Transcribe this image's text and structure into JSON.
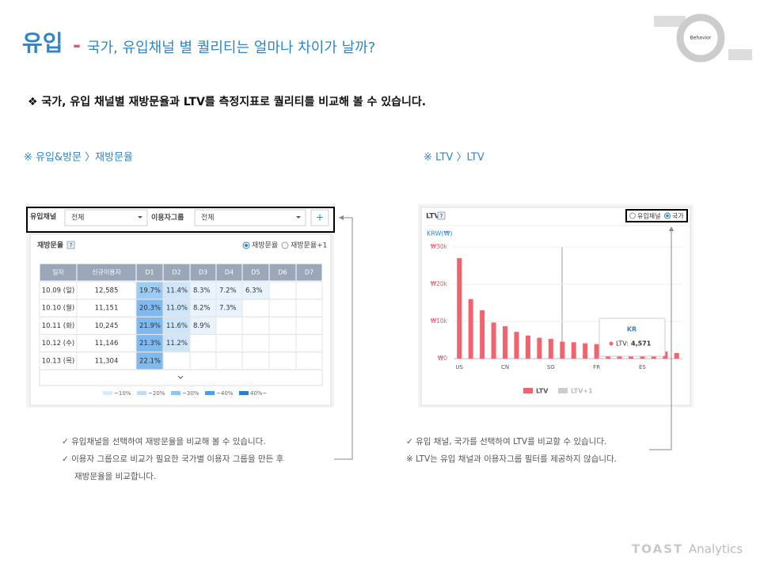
{
  "header": {
    "title": "유입",
    "dash": "-",
    "subtitle": "국가, 유입채널 별 퀄리티는 얼마나 차이가 날까?"
  },
  "diagram": {
    "center": "Behavior"
  },
  "intro": "❖ 국가, 유입 채널별 재방문율과 LTV를 측정지표로 퀄리티를 비교해 볼 수 있습니다.",
  "sections": [
    "※ 유입&방문 〉재방문율",
    "※ LTV 〉LTV"
  ],
  "retention_panel": {
    "filters": [
      {
        "label": "유입채널",
        "value": "전체"
      },
      {
        "label": "이용자그룹",
        "value": "전체"
      }
    ],
    "add": "+",
    "title": "재방문율",
    "help": "?",
    "options": [
      "재방문율",
      "재방문율+1"
    ],
    "table": {
      "columns": [
        "일자",
        "신규이용자",
        "D1",
        "D2",
        "D3",
        "D4",
        "D5",
        "D6",
        "D7"
      ],
      "rows": [
        [
          "10.09 (일)",
          "12,585",
          "19.7%",
          "11.4%",
          "8.3%",
          "7.2%",
          "6.3%"
        ],
        [
          "10.10 (월)",
          "11,151",
          "20.3%",
          "11.0%",
          "8.2%",
          "7.3%"
        ],
        [
          "10.11 (화)",
          "10,245",
          "21.9%",
          "11.6%",
          "8.9%"
        ],
        [
          "10.12 (수)",
          "11,146",
          "21.3%",
          "11.2%"
        ],
        [
          "10.13 (목)",
          "11,304",
          "22.1%"
        ]
      ]
    },
    "legend": [
      "~10%",
      "~20%",
      "~30%",
      "~40%",
      "40%~"
    ]
  },
  "ltv_panel": {
    "title": "LTV",
    "help": "?",
    "options": [
      "유입채널",
      "국가"
    ],
    "chart": {
      "type": "bar",
      "unit": "KRW(₩)",
      "categories": [
        "US",
        null,
        null,
        null,
        "CN",
        null,
        null,
        null,
        "SG",
        null,
        null,
        null,
        "FR",
        null,
        null,
        null,
        "ES",
        null,
        null,
        null
      ],
      "values": [
        27000,
        16000,
        13000,
        9700,
        8700,
        7200,
        6200,
        5600,
        5300,
        4571,
        4400,
        4100,
        3900,
        3500,
        1800,
        1500,
        1300,
        1200,
        1900,
        1500
      ],
      "color": "#f2636f",
      "ylim": [
        0,
        30000
      ],
      "yticks": [
        {
          "value": 0,
          "label": "₩0"
        },
        {
          "value": 10000,
          "label": "₩10k"
        },
        {
          "value": 20000,
          "label": "₩20k"
        },
        {
          "value": 30000,
          "label": "₩30k"
        }
      ],
      "legend": [
        {
          "name": "LTV",
          "color": "#f2636f"
        },
        {
          "name": "LTV+1",
          "color": "#cccccc"
        }
      ],
      "tooltip": {
        "country": "KR",
        "label": "LTV:",
        "value": 4571,
        "value_label": "4,571"
      }
    }
  },
  "notes": {
    "left": [
      "✓  유입채널을 선택하여 재방문율을 비교해 볼 수 있습니다.",
      "✓  이용자 그룹으로 비교가 필요한 국가별 이용자 그룹을 만든 후",
      "재방문율을 비교합니다."
    ],
    "right": [
      "✓  유입 채널, 국가를 선택하여 LTV를 비교할 수 있습니다.",
      "※ LTV는 유입 채널과 이용자그룹 필터를 제공하지 않습니다."
    ]
  },
  "footer": {
    "brand": "TOAST",
    "product": "Analytics"
  }
}
